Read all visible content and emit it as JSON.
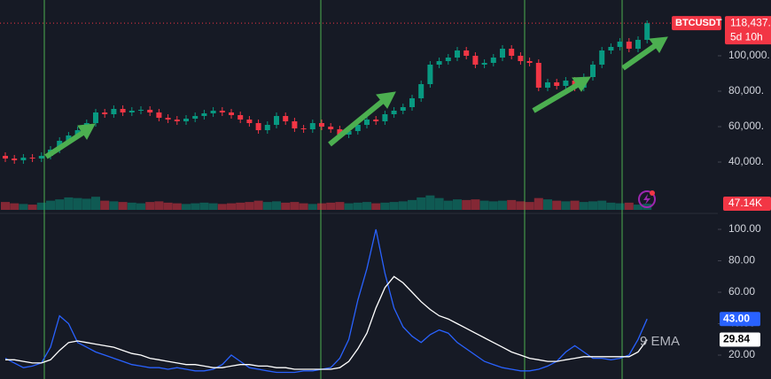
{
  "chart_data": [
    {
      "type": "candlestick",
      "symbol": "BTCUSDT",
      "countdown": "5d 10h",
      "price_tag": {
        "value": 118437,
        "label": "118,437."
      },
      "up_color": "#089981",
      "down_color": "#f23645",
      "ylim": [
        12500,
        131500
      ],
      "yticks": [
        {
          "value": 40000,
          "label": "40,000."
        },
        {
          "value": 60000,
          "label": "60,000."
        },
        {
          "value": 80000,
          "label": "80,000."
        },
        {
          "value": 100000,
          "label": "100,000."
        }
      ],
      "open": [
        43500,
        42000,
        41000,
        42500,
        42000,
        43500,
        47000,
        52000,
        55000,
        58000,
        62000,
        68000,
        67000,
        70000,
        68000,
        69000,
        69500,
        68000,
        65000,
        64000,
        63000,
        64500,
        66000,
        67500,
        69000,
        68000,
        66500,
        64000,
        62000,
        58000,
        61000,
        66000,
        63000,
        59000,
        58500,
        62000,
        60000,
        58500,
        55500,
        57500,
        61000,
        64000,
        63000,
        67000,
        69000,
        71000,
        76000,
        84000,
        95000,
        97000,
        99000,
        103000,
        100000,
        95000,
        96000,
        99000,
        104000,
        100000,
        97000,
        96000,
        82000,
        85000,
        83000,
        86000,
        82000,
        88000,
        95000,
        103000,
        105000,
        108000,
        104000,
        109000
      ],
      "high": [
        45500,
        44000,
        44500,
        44500,
        45500,
        49000,
        54000,
        57000,
        60000,
        64000,
        70000,
        70000,
        72000,
        72000,
        71000,
        71500,
        71500,
        70000,
        67000,
        66000,
        66500,
        68000,
        69500,
        71000,
        71000,
        70000,
        68500,
        66000,
        64000,
        63000,
        68000,
        68000,
        65000,
        61000,
        64000,
        64000,
        62000,
        60500,
        59500,
        63000,
        66000,
        66000,
        69000,
        71000,
        73000,
        78000,
        86000,
        97000,
        99000,
        101000,
        105000,
        105000,
        102000,
        98000,
        101000,
        106000,
        106000,
        102000,
        99000,
        98000,
        87000,
        87000,
        88000,
        88000,
        90000,
        97000,
        105000,
        107000,
        110000,
        110000,
        111000,
        120000
      ],
      "low": [
        40000,
        39000,
        39000,
        40000,
        40000,
        41500,
        45000,
        50000,
        53000,
        56000,
        60000,
        65000,
        65000,
        66000,
        66000,
        67000,
        66000,
        63000,
        62000,
        61000,
        61000,
        62500,
        64000,
        65500,
        66000,
        64500,
        62000,
        60000,
        56000,
        56000,
        59000,
        61000,
        57000,
        56500,
        56500,
        58000,
        56500,
        53500,
        53500,
        55500,
        59000,
        61000,
        61000,
        65000,
        67000,
        69000,
        74000,
        82000,
        93000,
        95000,
        97000,
        98000,
        93000,
        93000,
        94000,
        97000,
        98000,
        95000,
        94000,
        80000,
        80000,
        81000,
        81000,
        80000,
        80000,
        86000,
        93000,
        101000,
        103000,
        102000,
        102000,
        107000
      ],
      "close": [
        42000,
        41000,
        42500,
        42000,
        43500,
        47000,
        52000,
        55000,
        58000,
        62000,
        68000,
        67000,
        70000,
        68000,
        69000,
        69500,
        68000,
        65000,
        64000,
        63000,
        64500,
        66000,
        67500,
        69000,
        68000,
        66500,
        64000,
        62000,
        58000,
        61000,
        66000,
        63000,
        59000,
        58500,
        62000,
        60000,
        58500,
        55500,
        57500,
        61000,
        64000,
        63000,
        67000,
        69000,
        71000,
        76000,
        84000,
        95000,
        97000,
        99000,
        103000,
        100000,
        95000,
        96000,
        99000,
        104000,
        100000,
        97000,
        96000,
        82000,
        85000,
        83000,
        86000,
        82000,
        88000,
        95000,
        103000,
        105000,
        108000,
        104000,
        109000,
        118437
      ],
      "volumes": [
        60000,
        50000,
        45000,
        40000,
        55000,
        70000,
        80000,
        95000,
        90000,
        85000,
        100000,
        70000,
        65000,
        60000,
        55000,
        50000,
        60000,
        65000,
        55000,
        50000,
        45000,
        50000,
        55000,
        50000,
        45000,
        50000,
        55000,
        60000,
        70000,
        60000,
        65000,
        55000,
        60000,
        50000,
        45000,
        50000,
        55000,
        60000,
        50000,
        55000,
        60000,
        50000,
        55000,
        60000,
        65000,
        75000,
        95000,
        110000,
        90000,
        70000,
        80000,
        75000,
        80000,
        70000,
        65000,
        70000,
        75000,
        65000,
        60000,
        90000,
        80000,
        70000,
        65000,
        70000,
        60000,
        65000,
        70000,
        55000,
        50000,
        55000,
        40000,
        47140
      ],
      "volume_ylim": [
        0,
        540000
      ],
      "volume_last_label": "47.14K"
    },
    {
      "type": "line",
      "annotation": "9 EMA",
      "ylim": [
        4.8,
        107.9
      ],
      "yticks": [
        {
          "value": 20,
          "label": "20.00"
        },
        {
          "value": 40,
          "label": "40.00"
        },
        {
          "value": 60,
          "label": "60.00"
        },
        {
          "value": 80,
          "label": "80.00"
        },
        {
          "value": 100,
          "label": "100.00"
        }
      ],
      "series": [
        {
          "color": "#2962ff",
          "last_label": "43.00",
          "values": [
            18,
            15,
            12,
            13,
            15,
            25,
            45,
            40,
            28,
            25,
            22,
            20,
            18,
            16,
            14,
            13,
            12,
            12,
            11,
            12,
            11,
            10,
            10,
            11,
            14,
            20,
            16,
            12,
            11,
            10,
            9,
            9,
            9,
            10,
            10,
            11,
            12,
            18,
            30,
            55,
            75,
            100,
            72,
            50,
            38,
            32,
            28,
            33,
            36,
            34,
            28,
            24,
            20,
            16,
            14,
            12,
            11,
            10,
            10,
            11,
            13,
            16,
            22,
            26,
            22,
            18,
            18,
            17,
            18,
            20,
            30,
            43
          ]
        },
        {
          "color": "#ffffff",
          "last_label": "29.84",
          "values": [
            17,
            17,
            16,
            15,
            15,
            17,
            23,
            28,
            29,
            28,
            27,
            26,
            25,
            23,
            21,
            20,
            18,
            17,
            16,
            15,
            14,
            14,
            13,
            12,
            12,
            13,
            14,
            14,
            13,
            13,
            12,
            12,
            11,
            11,
            11,
            11,
            11,
            12,
            16,
            24,
            34,
            50,
            63,
            70,
            66,
            60,
            54,
            49,
            45,
            43,
            40,
            37,
            34,
            31,
            28,
            25,
            22,
            20,
            18,
            17,
            16,
            16,
            17,
            18,
            19,
            19,
            19,
            19,
            19,
            19,
            22,
            29.84
          ]
        }
      ]
    }
  ]
}
